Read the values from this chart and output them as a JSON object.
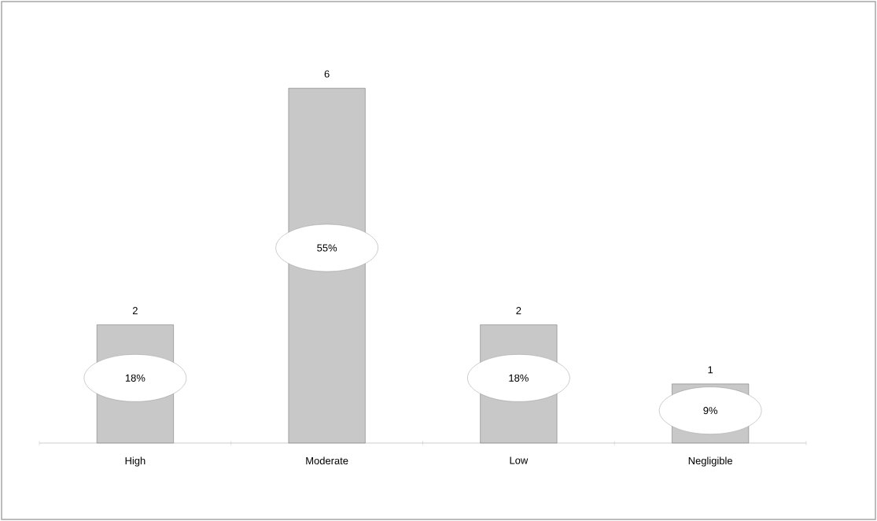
{
  "chart_data": {
    "type": "bar",
    "categories": [
      "High",
      "Moderate",
      "Low",
      "Negligible"
    ],
    "values": [
      2,
      6,
      2,
      1
    ],
    "color": "#c8c8c8",
    "data_labels": true,
    "annotations": [
      "18%",
      "55%",
      "18%",
      "9%"
    ]
  }
}
